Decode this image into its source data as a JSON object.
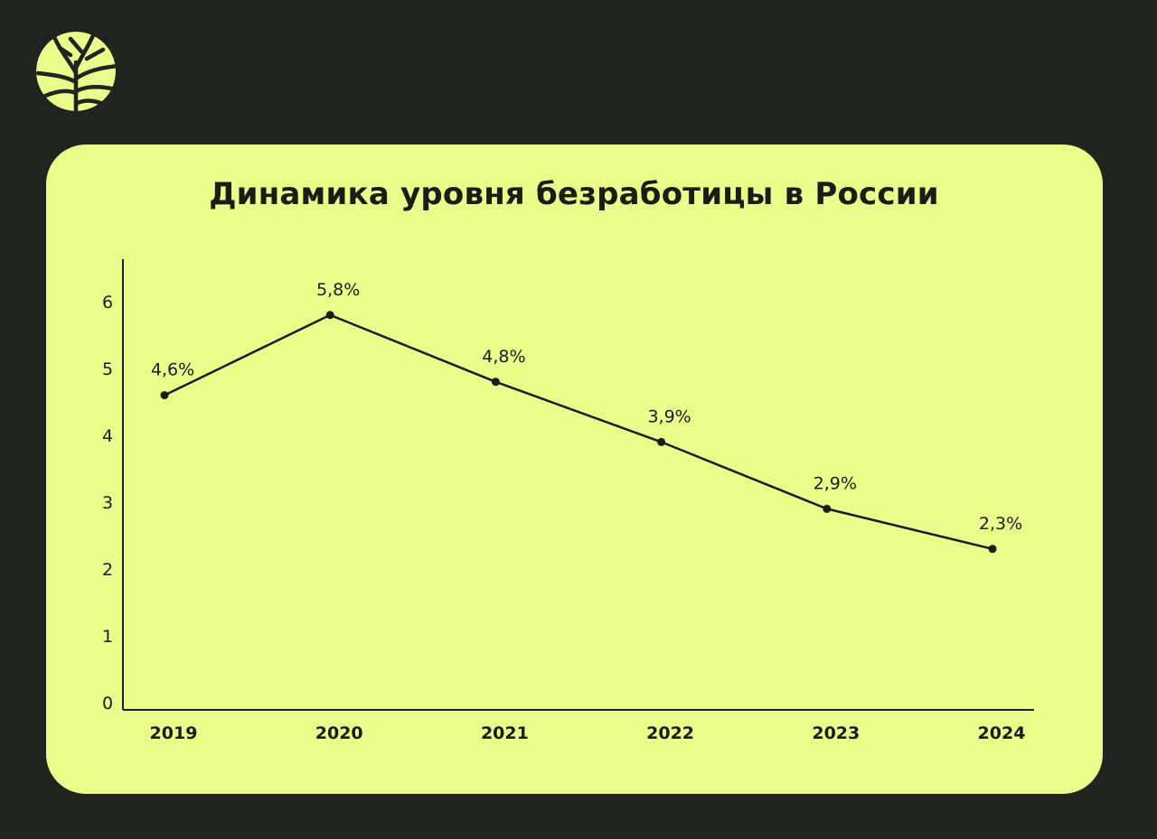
{
  "brand": {
    "logo_icon": "tree-leaf-logo-icon",
    "logo_color": "#ebfc8a"
  },
  "colors": {
    "background": "#1f241f",
    "card": "#ebfc8a",
    "line": "#1a1d16"
  },
  "chart_data": {
    "type": "line",
    "title": "Динамика уровня безработицы в России",
    "xlabel": "",
    "ylabel": "",
    "categories": [
      "2019",
      "2020",
      "2021",
      "2022",
      "2023",
      "2024"
    ],
    "series": [
      {
        "values": [
          4.6,
          5.8,
          4.8,
          3.9,
          2.9,
          2.3
        ],
        "data_labels": [
          "4,6%",
          "5,8%",
          "4,8%",
          "3,9%",
          "2,9%",
          "2,3%"
        ]
      }
    ],
    "y_ticks": [
      "0",
      "1",
      "2",
      "3",
      "4",
      "5",
      "6"
    ],
    "ylim": [
      0,
      6
    ],
    "grid": false,
    "legend": "none"
  }
}
